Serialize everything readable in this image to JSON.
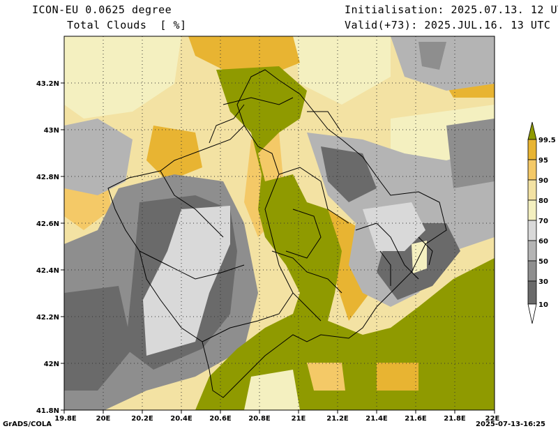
{
  "header": {
    "model": "ICON-EU 0.0625 degree",
    "variable": "Total Clouds  [ %]",
    "init": "Initialisation: 2025.07.13. 12 UTC",
    "valid": "Valid(+73): 2025.JUL.16. 13 UTC"
  },
  "map": {
    "lon_ticks": [
      "19.8E",
      "20E",
      "20.2E",
      "20.4E",
      "20.6E",
      "20.8E",
      "21E",
      "21.2E",
      "21.4E",
      "21.6E",
      "21.8E",
      "22E"
    ],
    "lat_ticks": [
      "43.2N",
      "43N",
      "42.8N",
      "42.6N",
      "42.4N",
      "42.2N",
      "42N",
      "41.8N"
    ],
    "lon_range": [
      19.8,
      22.0
    ],
    "lat_range": [
      41.8,
      43.4
    ]
  },
  "legend": {
    "labels": [
      "99.5",
      "95",
      "90",
      "80",
      "70",
      "60",
      "50",
      "30",
      "10"
    ],
    "colors": [
      "#8f9a00",
      "#e8b432",
      "#f4c967",
      "#f3e2a3",
      "#f4f0c0",
      "#d9d9d9",
      "#b4b4b4",
      "#8e8e8e",
      "#6a6a6a",
      "#ffffff"
    ]
  },
  "footer": {
    "left": "GrADS/COLA",
    "right": "2025-07-13-16:25"
  }
}
